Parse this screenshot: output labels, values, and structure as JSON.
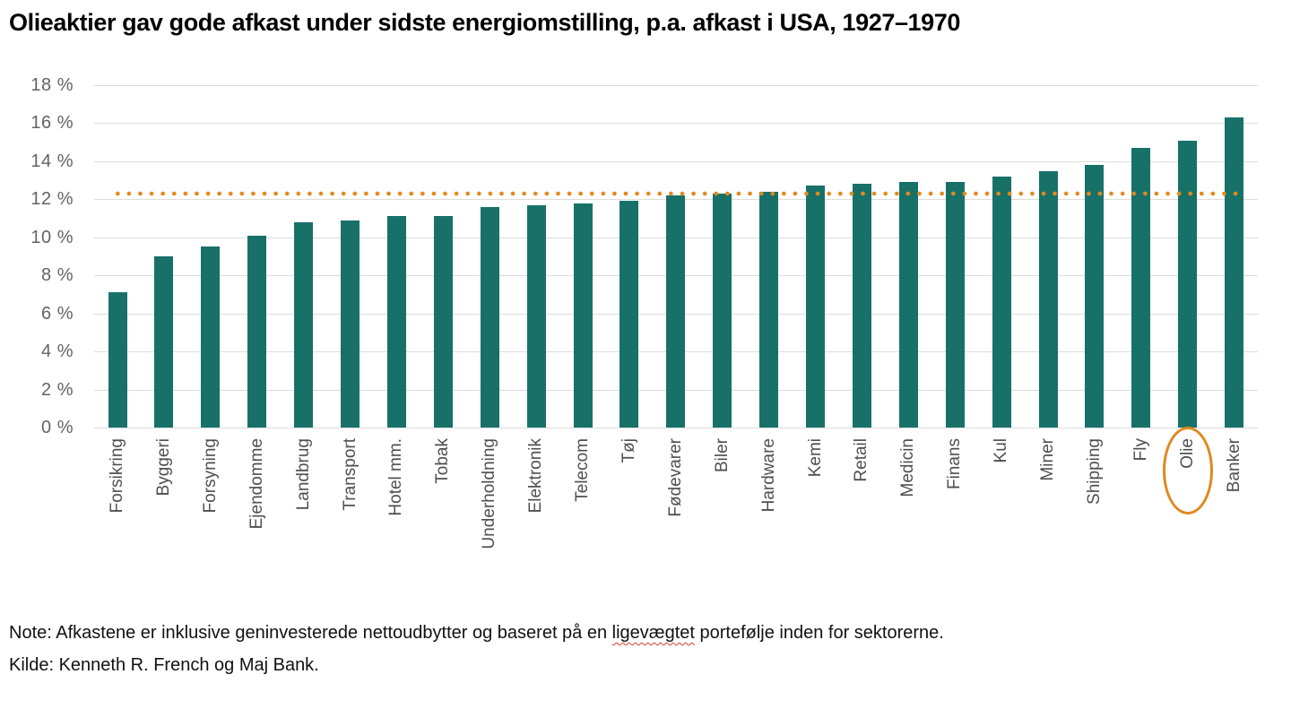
{
  "title": "Olieaktier gav gode afkast under sidste energiomstilling, p.a. afkast i USA, 1927–1970",
  "chart_data": {
    "type": "bar",
    "title": "Olieaktier gav gode afkast under sidste energiomstilling, p.a. afkast i USA, 1927–1970",
    "categories": [
      "Forsikring",
      "Byggeri",
      "Forsyning",
      "Ejendomme",
      "Landbrug",
      "Transport",
      "Hotel mm.",
      "Tobak",
      "Underholdning",
      "Elektronik",
      "Telecom",
      "Tøj",
      "Fødevarer",
      "Biler",
      "Hardware",
      "Kemi",
      "Retail",
      "Medicin",
      "Finans",
      "Kul",
      "Miner",
      "Shipping",
      "Fly",
      "Olie",
      "Banker"
    ],
    "values": [
      7.1,
      9.0,
      9.5,
      10.1,
      10.8,
      10.9,
      11.1,
      11.1,
      11.6,
      11.7,
      11.8,
      11.9,
      12.2,
      12.3,
      12.4,
      12.7,
      12.8,
      12.9,
      12.9,
      13.2,
      13.5,
      13.8,
      14.7,
      15.1,
      16.3
    ],
    "xlabel": "",
    "ylabel": "",
    "ylim": [
      0,
      18
    ],
    "ytick_step": 2,
    "ytick_labels": [
      "18 %",
      "16 %",
      "14 %",
      "12 %",
      "10 %",
      "8 %",
      "6 %",
      "4 %",
      "2 %",
      "0 %"
    ],
    "grid": "horizontal",
    "legend": "none",
    "bar_color": "#177169",
    "reference_line": {
      "value": 12.3,
      "style": "dotted",
      "color": "#E28A1E"
    },
    "highlighted_category": "Olie",
    "highlight_color": "#E0891E"
  },
  "notes": {
    "note_prefix": "Note: Afkastene er inklusive geninvesterede nettoudbytter og baseret på en ",
    "note_highlight": "ligevægtet",
    "note_suffix": " portefølje inden for sektorerne.",
    "source": "Kilde: Kenneth R. French og Maj Bank."
  }
}
